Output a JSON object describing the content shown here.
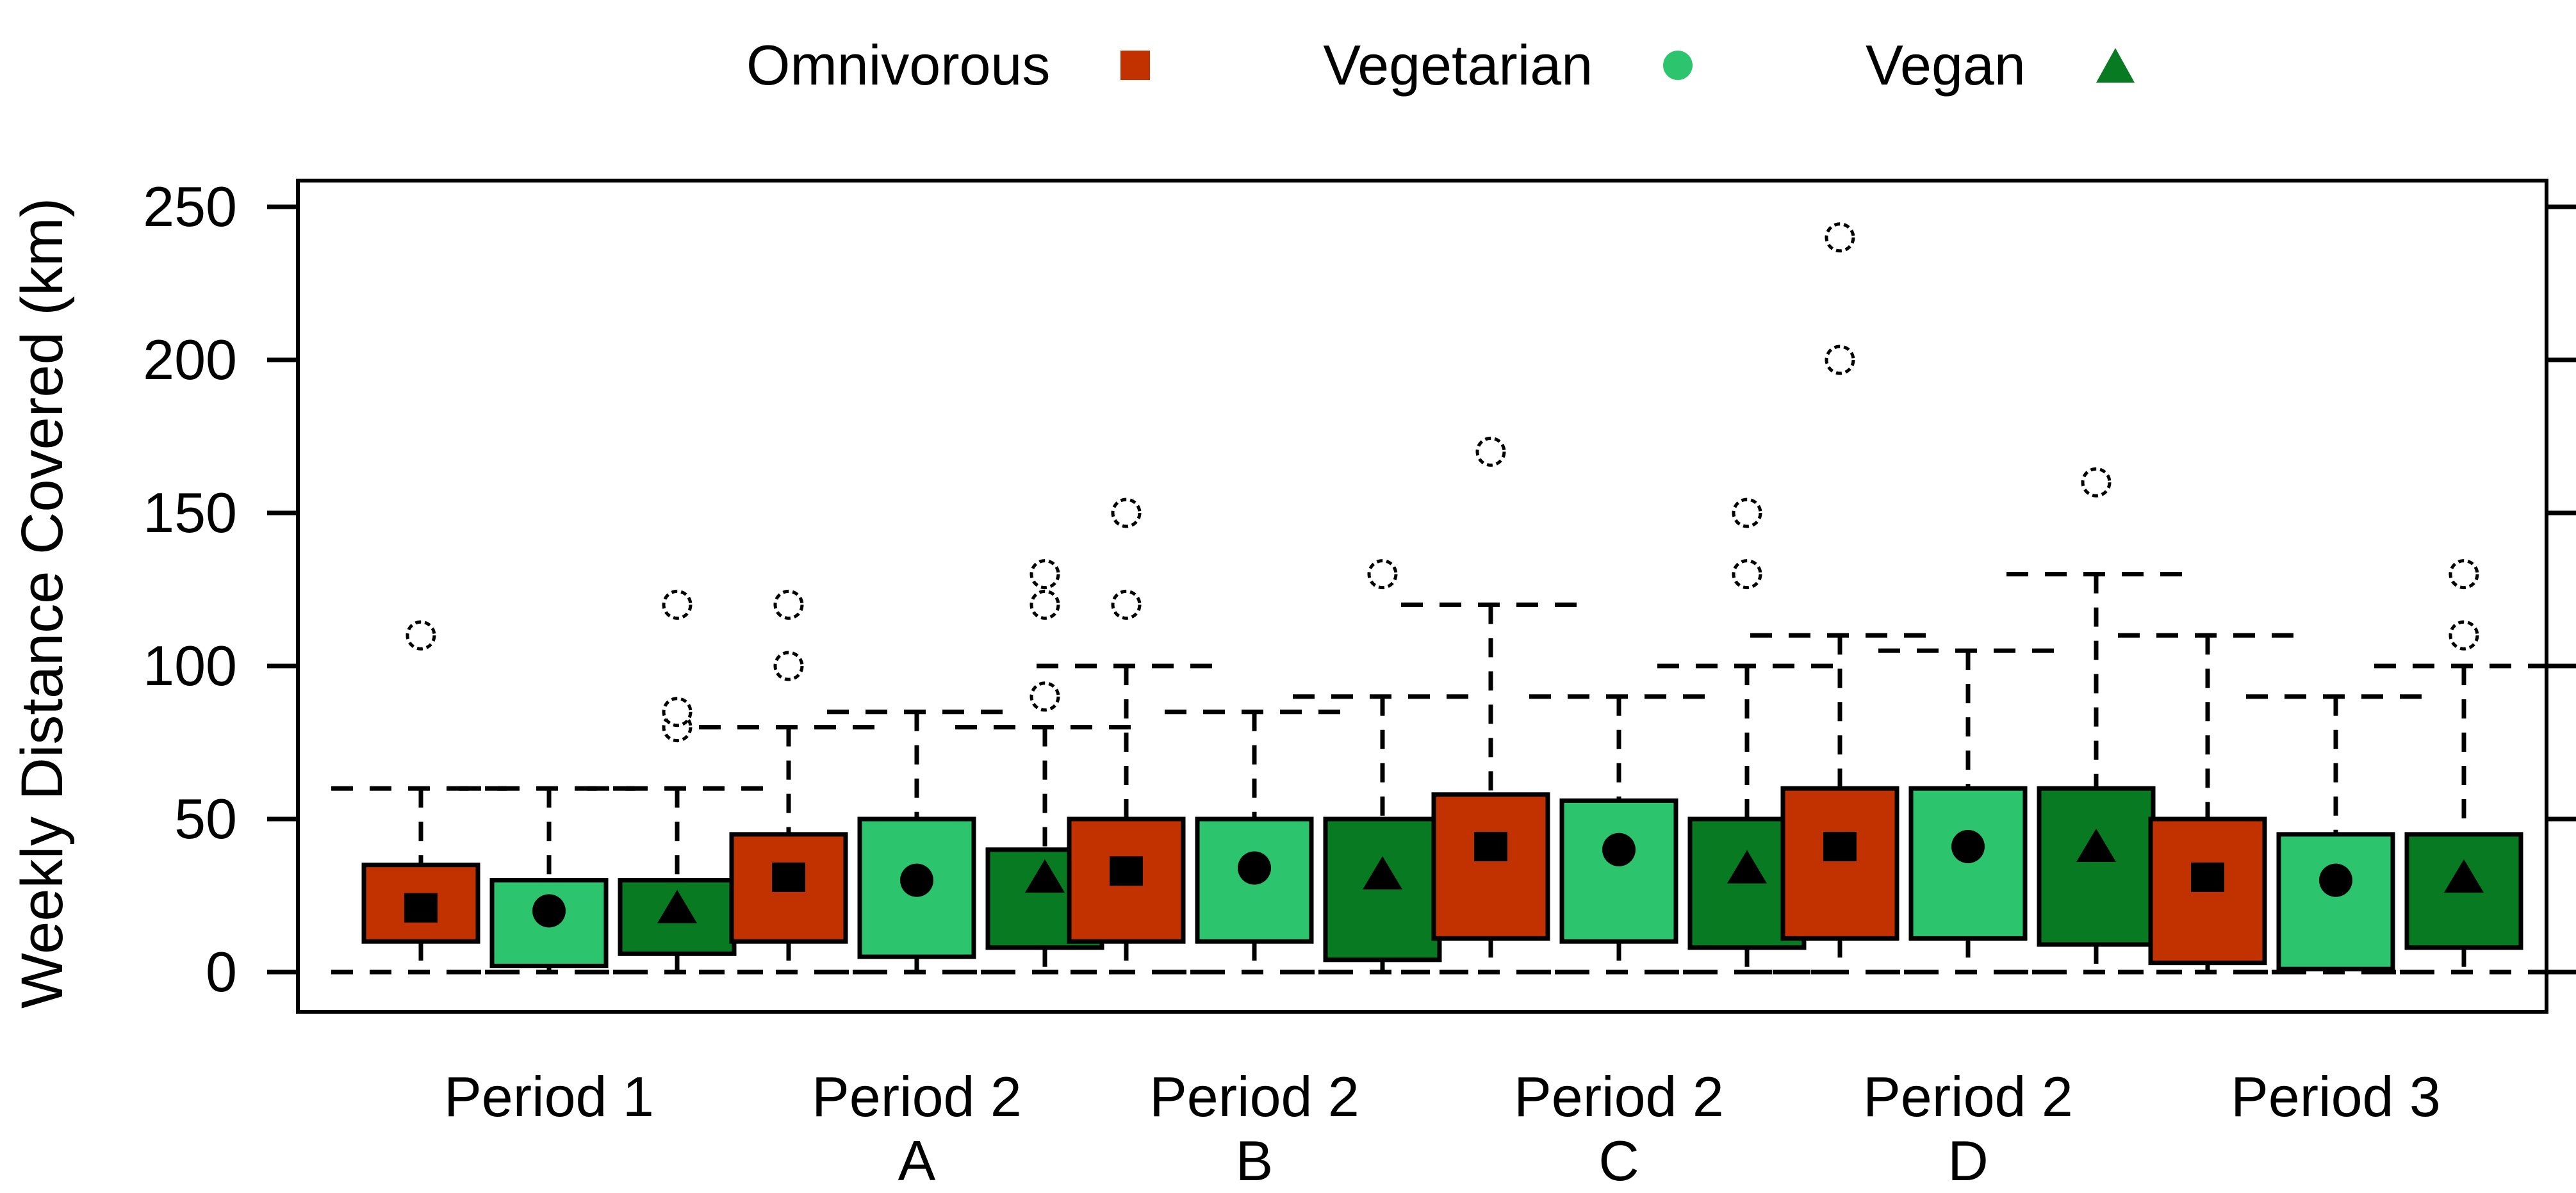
{
  "page": {
    "background": "#FFFFFF"
  },
  "chart_data": {
    "type": "grouped_boxplot",
    "title": "",
    "ylabel": "Weekly Distance Covered (km)",
    "xlabel": "",
    "yticks": [
      0,
      50,
      100,
      150,
      200,
      250
    ],
    "ylim": [
      -12,
      260
    ],
    "grid": false,
    "legend_position": "top",
    "legend": [
      {
        "label": "Omnivorous",
        "marker": "square",
        "color": "#C23200"
      },
      {
        "label": "Vegetarian",
        "marker": "circle",
        "color": "#2DC46E"
      },
      {
        "label": "Vegan",
        "marker": "triangle",
        "color": "#077A22"
      }
    ],
    "groups": [
      {
        "label_line1": "Period 1",
        "label_line2": "",
        "boxes": [
          {
            "series": "Omnivorous",
            "q1": 10,
            "q3": 35,
            "mean": 21,
            "whisker_low": 0,
            "whisker_high": 60,
            "outliers": [
              110
            ]
          },
          {
            "series": "Vegetarian",
            "q1": 2,
            "q3": 30,
            "mean": 20,
            "whisker_low": 0,
            "whisker_high": 60,
            "outliers": []
          },
          {
            "series": "Vegan",
            "q1": 6,
            "q3": 30,
            "mean": 21,
            "whisker_low": 0,
            "whisker_high": 60,
            "outliers": [
              80,
              85,
              120
            ]
          }
        ]
      },
      {
        "label_line1": "Period 2",
        "label_line2": "A",
        "boxes": [
          {
            "series": "Omnivorous",
            "q1": 10,
            "q3": 45,
            "mean": 31,
            "whisker_low": 0,
            "whisker_high": 80,
            "outliers": [
              100,
              120
            ]
          },
          {
            "series": "Vegetarian",
            "q1": 5,
            "q3": 50,
            "mean": 30,
            "whisker_low": 0,
            "whisker_high": 85,
            "outliers": []
          },
          {
            "series": "Vegan",
            "q1": 8,
            "q3": 40,
            "mean": 31,
            "whisker_low": 0,
            "whisker_high": 80,
            "outliers": [
              90,
              120,
              130
            ]
          }
        ]
      },
      {
        "label_line1": "Period 2",
        "label_line2": "B",
        "boxes": [
          {
            "series": "Omnivorous",
            "q1": 10,
            "q3": 50,
            "mean": 33,
            "whisker_low": 0,
            "whisker_high": 100,
            "outliers": [
              120,
              150
            ]
          },
          {
            "series": "Vegetarian",
            "q1": 10,
            "q3": 50,
            "mean": 34,
            "whisker_low": 0,
            "whisker_high": 85,
            "outliers": []
          },
          {
            "series": "Vegan",
            "q1": 4,
            "q3": 50,
            "mean": 32,
            "whisker_low": 0,
            "whisker_high": 90,
            "outliers": [
              130
            ]
          }
        ]
      },
      {
        "label_line1": "Period 2",
        "label_line2": "C",
        "boxes": [
          {
            "series": "Omnivorous",
            "q1": 11,
            "q3": 58,
            "mean": 41,
            "whisker_low": 0,
            "whisker_high": 120,
            "outliers": [
              170
            ]
          },
          {
            "series": "Vegetarian",
            "q1": 10,
            "q3": 56,
            "mean": 40,
            "whisker_low": 0,
            "whisker_high": 90,
            "outliers": []
          },
          {
            "series": "Vegan",
            "q1": 8,
            "q3": 50,
            "mean": 34,
            "whisker_low": 0,
            "whisker_high": 100,
            "outliers": [
              130,
              150
            ]
          }
        ]
      },
      {
        "label_line1": "Period 2",
        "label_line2": "D",
        "boxes": [
          {
            "series": "Omnivorous",
            "q1": 11,
            "q3": 60,
            "mean": 41,
            "whisker_low": 0,
            "whisker_high": 110,
            "outliers": [
              200,
              240
            ]
          },
          {
            "series": "Vegetarian",
            "q1": 11,
            "q3": 60,
            "mean": 41,
            "whisker_low": 0,
            "whisker_high": 105,
            "outliers": []
          },
          {
            "series": "Vegan",
            "q1": 9,
            "q3": 60,
            "mean": 41,
            "whisker_low": 0,
            "whisker_high": 130,
            "outliers": [
              160
            ]
          }
        ]
      },
      {
        "label_line1": "Period 3",
        "label_line2": "",
        "boxes": [
          {
            "series": "Omnivorous",
            "q1": 3,
            "q3": 50,
            "mean": 31,
            "whisker_low": 0,
            "whisker_high": 110,
            "outliers": []
          },
          {
            "series": "Vegetarian",
            "q1": 1,
            "q3": 45,
            "mean": 30,
            "whisker_low": 0,
            "whisker_high": 90,
            "outliers": []
          },
          {
            "series": "Vegan",
            "q1": 8,
            "q3": 45,
            "mean": 31,
            "whisker_low": 0,
            "whisker_high": 100,
            "outliers": [
              110,
              130
            ]
          }
        ]
      }
    ]
  }
}
